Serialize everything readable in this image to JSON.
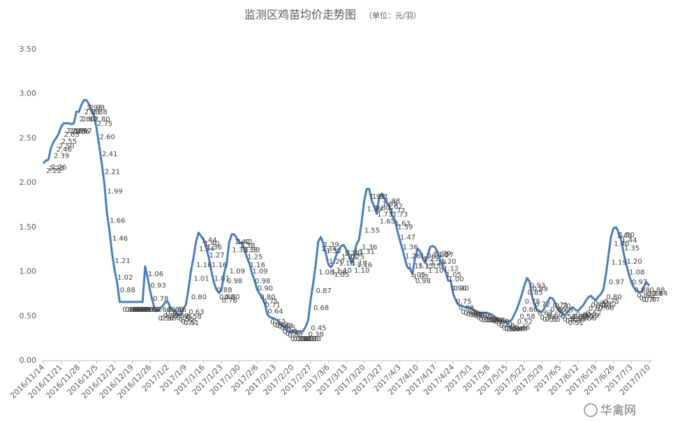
{
  "chart_data": {
    "type": "line",
    "title": "监测区鸡苗均价走势图",
    "subtitle": "（单位：元/羽）",
    "watermark": "华禽网",
    "color": "#4a7ebb",
    "ylim": [
      0,
      3.5
    ],
    "yticks": [
      {
        "value": 0,
        "label": "0.00"
      },
      {
        "value": 0.5,
        "label": "0.50"
      },
      {
        "value": 1,
        "label": "1.00"
      },
      {
        "value": 1.5,
        "label": "1.50"
      },
      {
        "value": 2,
        "label": "2.00"
      },
      {
        "value": 2.5,
        "label": "2.50"
      },
      {
        "value": 3,
        "label": "3.00"
      },
      {
        "value": 3.5,
        "label": "3.50"
      }
    ],
    "grid": false,
    "categories": [
      "2016/11/14",
      null,
      null,
      null,
      null,
      null,
      null,
      "2016/11/21",
      null,
      null,
      null,
      null,
      null,
      null,
      "2016/11/28",
      null,
      null,
      null,
      null,
      null,
      null,
      "2016/12/5",
      null,
      null,
      null,
      null,
      null,
      null,
      "2016/12/12",
      null,
      null,
      null,
      null,
      null,
      null,
      "2016/12/19",
      null,
      null,
      null,
      null,
      null,
      null,
      "2016/12/26",
      null,
      null,
      null,
      null,
      null,
      null,
      "2017/1/2",
      null,
      null,
      null,
      null,
      null,
      null,
      "2017/1/9",
      null,
      null,
      null,
      null,
      null,
      null,
      "2017/1/16",
      null,
      null,
      null,
      null,
      null,
      null,
      "2017/1/23",
      null,
      null,
      null,
      null,
      null,
      null,
      "2017/1/30",
      null,
      null,
      null,
      null,
      null,
      null,
      "2017/2/6",
      null,
      null,
      null,
      null,
      null,
      null,
      "2017/2/13",
      null,
      null,
      null,
      null,
      null,
      null,
      "2017/2/20",
      null,
      null,
      null,
      null,
      null,
      null,
      "2017/2/27",
      null,
      null,
      null,
      null,
      null,
      null,
      "2017/3/6",
      null,
      null,
      null,
      null,
      null,
      null,
      "2017/3/13",
      null,
      null,
      null,
      null,
      null,
      null,
      "2017/3/20",
      null,
      null,
      null,
      null,
      null,
      null,
      "2017/3/27",
      null,
      null,
      null,
      null,
      null,
      null,
      "2017/4/3",
      null,
      null,
      null,
      null,
      null,
      null,
      "2017/4/10",
      null,
      null,
      null,
      null,
      null,
      null,
      "2017/4/17",
      null,
      null,
      null,
      null,
      null,
      null,
      "2017/4/24",
      null,
      null,
      null,
      null,
      null,
      null,
      "2017/5/1",
      null,
      null,
      null,
      null,
      null,
      null,
      "2017/5/8",
      null,
      null,
      null,
      null,
      null,
      null,
      "2017/5/15",
      null,
      null,
      null,
      null,
      null,
      null,
      "2017/5/22",
      null,
      null,
      null,
      null,
      null,
      null,
      "2017/5/29",
      null,
      null,
      null,
      null,
      null,
      null,
      "2017/6/5",
      null,
      null,
      null,
      null,
      null,
      null,
      "2017/6/12",
      null,
      null,
      null,
      null,
      null,
      null,
      "2017/6/19",
      null,
      null,
      null,
      null,
      null,
      null,
      "2017/6/26",
      null,
      null,
      null,
      null,
      null,
      null,
      "2017/7/3",
      null,
      null,
      null,
      null,
      null,
      null,
      "2017/7/10"
    ],
    "values": [
      2.22,
      2.25,
      2.26,
      2.39,
      2.46,
      2.5,
      2.55,
      2.63,
      2.67,
      2.67,
      2.67,
      2.66,
      2.67,
      2.8,
      2.8,
      2.88,
      2.93,
      2.93,
      2.88,
      2.8,
      2.75,
      2.6,
      2.41,
      2.21,
      1.99,
      1.66,
      1.46,
      1.21,
      1.02,
      0.88,
      0.66,
      0.66,
      0.66,
      0.66,
      0.66,
      0.66,
      0.66,
      0.66,
      0.66,
      0.66,
      1.06,
      0.93,
      0.78,
      0.66,
      0.56,
      0.56,
      0.59,
      0.62,
      0.66,
      0.66,
      0.59,
      0.57,
      0.55,
      0.52,
      0.51,
      0.58,
      0.63,
      0.8,
      1.01,
      1.16,
      1.34,
      1.44,
      1.4,
      1.36,
      1.27,
      1.16,
      1.01,
      0.88,
      0.8,
      0.76,
      0.8,
      0.98,
      1.09,
      1.33,
      1.42,
      1.42,
      1.38,
      1.33,
      1.33,
      1.25,
      1.16,
      1.09,
      0.98,
      0.9,
      0.8,
      0.75,
      0.71,
      0.64,
      0.52,
      0.49,
      0.48,
      0.47,
      0.45,
      0.41,
      0.39,
      0.37,
      0.33,
      0.33,
      0.33,
      0.33,
      0.33,
      0.33,
      0.33,
      0.38,
      0.45,
      0.68,
      0.87,
      1.08,
      1.34,
      1.39,
      1.32,
      1.2,
      1.08,
      1.05,
      1.1,
      1.18,
      1.25,
      1.29,
      1.3,
      1.25,
      1.18,
      1.1,
      1.16,
      1.31,
      1.36,
      1.55,
      1.79,
      1.93,
      1.93,
      1.8,
      1.73,
      1.65,
      1.85,
      1.88,
      1.82,
      1.77,
      1.73,
      1.63,
      1.59,
      1.47,
      1.36,
      1.26,
      1.15,
      1.05,
      1.03,
      0.98,
      1.15,
      1.26,
      1.23,
      1.15,
      1.1,
      1.19,
      1.28,
      1.29,
      1.27,
      1.2,
      1.12,
      1.05,
      1.0,
      0.9,
      0.9,
      0.75,
      0.68,
      0.63,
      0.62,
      0.61,
      0.6,
      0.6,
      0.59,
      0.57,
      0.55,
      0.54,
      0.54,
      0.54,
      0.54,
      0.53,
      0.52,
      0.5,
      0.48,
      0.45,
      0.44,
      0.44,
      0.44,
      0.44,
      0.46,
      0.52,
      0.58,
      0.66,
      0.75,
      0.85,
      0.93,
      0.89,
      0.72,
      0.62,
      0.57,
      0.55,
      0.55,
      0.6,
      0.66,
      0.71,
      0.7,
      0.65,
      0.58,
      0.55,
      0.53,
      0.51,
      0.55,
      0.58,
      0.6,
      0.57,
      0.56,
      0.59,
      0.62,
      0.67,
      0.71,
      0.73,
      0.7,
      0.68,
      0.72,
      0.75,
      0.8,
      0.97,
      1.19,
      1.4,
      1.49,
      1.5,
      1.44,
      1.35,
      1.2,
      1.08,
      0.97,
      0.88,
      0.82,
      0.79,
      0.77,
      0.77,
      0.84,
      0.88,
      0.84
    ],
    "value_labels": [
      "2.22",
      "2.25",
      "2.26",
      "2.39",
      "2.46",
      "2.50",
      "2.55",
      "2.63",
      "2.67",
      "2.67",
      "2.67",
      "2.66",
      "2.67",
      "2.80",
      "2.80",
      "2.88",
      "2.93",
      "2.93",
      "2.88",
      "2.80",
      "2.75",
      "2.60",
      "2.41",
      "2.21",
      "1.99",
      "1.66",
      "1.46",
      "1.21",
      "1.02",
      "0.88",
      "0.66",
      "0.66",
      "0.66",
      "0.66",
      "0.66",
      "0.66",
      "0.66",
      "0.66",
      "0.66",
      "0.66",
      "1.06",
      "0.93",
      "0.78",
      "0.66",
      "0.56",
      "0.56",
      "0.59",
      "0.62",
      "0.66",
      "0.66",
      "0.59",
      "0.57",
      "0.55",
      "0.52",
      "0.51",
      "0.58",
      "0.63",
      "0.80",
      "1.01",
      "1.16",
      "1.34",
      "1.44",
      "1.40",
      "1.36",
      "1.27",
      "1.16",
      "1.01",
      "0.88",
      "0.80",
      "0.76",
      "0.80",
      "0.98",
      "1.09",
      "1.33",
      "1.42",
      "1.42",
      "1.38",
      "1.33",
      "1.33",
      "1.25",
      "1.16",
      "1.09",
      "0.98",
      "0.90",
      "0.80",
      "0.75",
      "0.71",
      "0.64",
      "0.52",
      "0.49",
      "0.48",
      "0.47",
      "0.45",
      "0.41",
      "0.39",
      "0.37",
      "0.33",
      "0.33",
      "0.33",
      "0.33",
      "0.33",
      "0.33",
      "0.33",
      "0.38",
      "0.45",
      "0.68",
      "0.87",
      "1.08",
      "1.34",
      "1.39",
      "1.32",
      "1.20",
      "1.08",
      "1.05",
      "1.10",
      "1.18",
      "1.25",
      "1.29",
      "1.30",
      "1.25",
      "1.18",
      "1.10",
      "1.16",
      "1.31",
      "1.36",
      "1.55",
      "1.79",
      "1.93",
      "1.93",
      "1.80",
      "1.73",
      "1.65",
      "1.85",
      "1.88",
      "1.82",
      "1.77",
      "1.73",
      "1.63",
      "1.59",
      "1.47",
      "1.36",
      "1.26",
      "1.15",
      "1.05",
      "1.03",
      "0.98",
      "1.15",
      "1.26",
      "1.23",
      "1.15",
      "1.10",
      "1.19",
      "1.28",
      "1.29",
      "1.27",
      "1.20",
      "1.12",
      "1.05",
      "1.00",
      "0.90",
      "0.90",
      "0.75",
      "0.68",
      "0.63",
      "0.62",
      "0.61",
      "0.60",
      "0.60",
      "0.59",
      "0.57",
      "0.55",
      "0.54",
      "0.54",
      "0.54",
      "0.54",
      "0.53",
      "0.52",
      "0.50",
      "0.48",
      "0.45",
      "0.44",
      "0.44",
      "0.44",
      "0.44",
      "0.46",
      "0.52",
      "0.58",
      "0.66",
      "0.75",
      "0.85",
      "0.93",
      "0.89",
      "0.72",
      "0.62",
      "0.57",
      "0.55",
      "0.55",
      "0.60",
      "0.66",
      "0.71",
      "0.70",
      "0.65",
      "0.58",
      "0.55",
      "0.53",
      "0.51",
      "0.55",
      "0.58",
      "0.60",
      "0.57",
      "0.56",
      "0.59",
      "0.62",
      "0.67",
      "0.71",
      "0.73",
      "0.70",
      "0.68",
      "0.72",
      "0.75",
      "0.80",
      "0.97",
      "1.19",
      "1.40",
      "1.49",
      "1.50",
      "1.44",
      "1.35",
      "1.20",
      "1.08",
      "0.97",
      "0.88",
      "0.82",
      "0.79",
      "0.77",
      "0.77",
      "0.84",
      "0.88",
      "0.84"
    ]
  }
}
